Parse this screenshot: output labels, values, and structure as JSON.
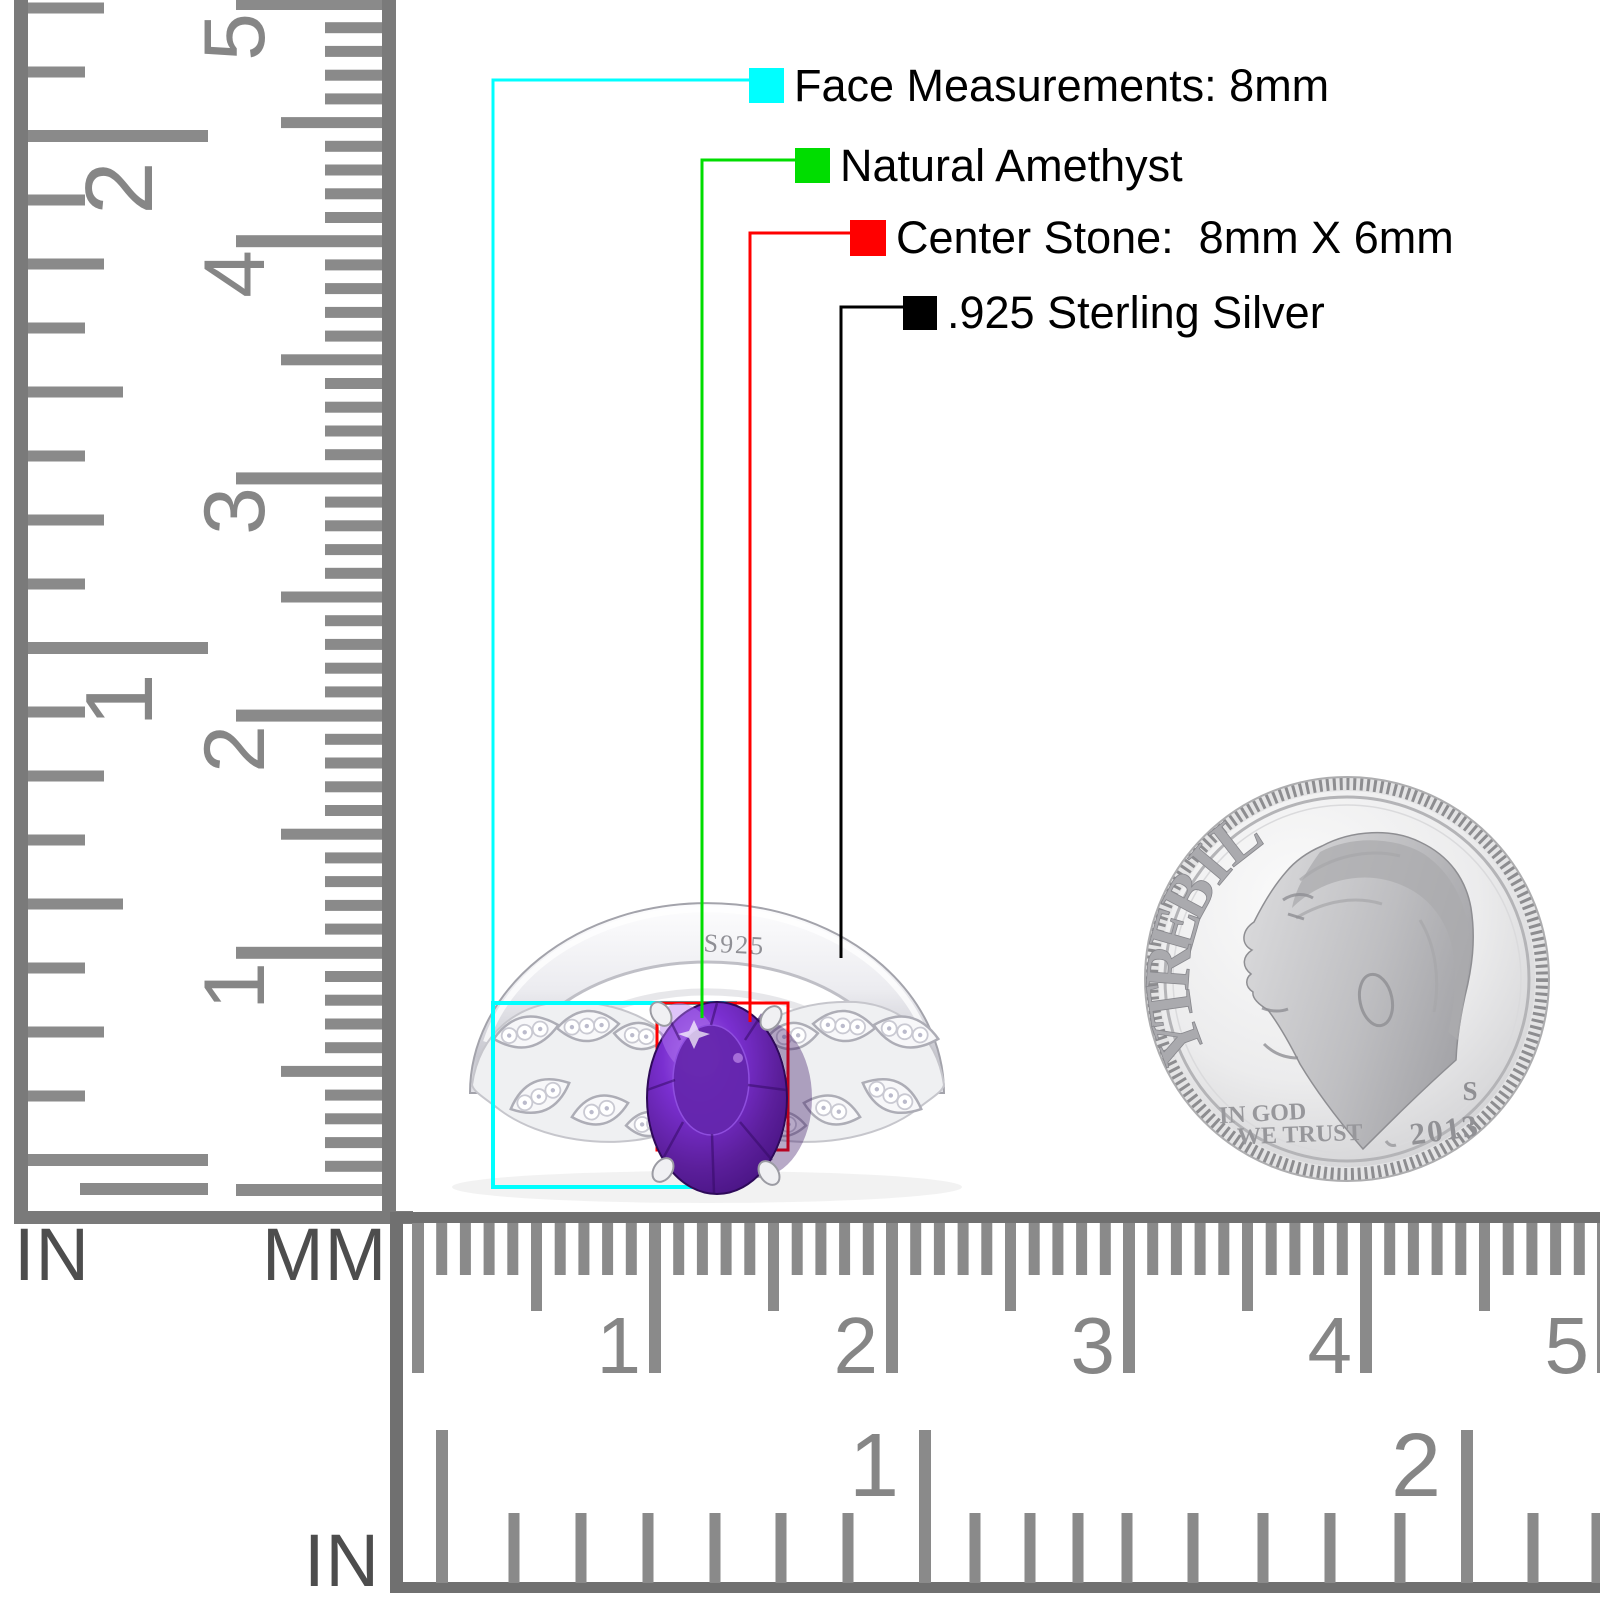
{
  "page": {
    "background": "#ffffff",
    "description": "Sterling silver oval amethyst ring product measurement image with rulers and dime for scale"
  },
  "callouts": [
    {
      "name": "face-measurements",
      "text": "Face Measurements: 8mm",
      "swatch_color": "#00ffff"
    },
    {
      "name": "stone-material",
      "text": "Natural Amethyst",
      "swatch_color": "#00dd00"
    },
    {
      "name": "center-stone-size",
      "text": "Center Stone:  8mm X 6mm",
      "swatch_color": "#ff0000"
    },
    {
      "name": "metal",
      "text": ".925 Sterling Silver",
      "swatch_color": "#000000"
    }
  ],
  "rulers": {
    "left_inch": {
      "unit_label": "IN",
      "numbers": [
        "1",
        "2"
      ]
    },
    "left_mm": {
      "unit_label": "MM",
      "numbers": [
        "1",
        "2",
        "3",
        "4",
        "5"
      ]
    },
    "bottom_mm": {
      "numbers": [
        "1",
        "2",
        "3",
        "4",
        "5"
      ]
    },
    "bottom_inch": {
      "unit_label": "IN",
      "numbers": [
        "1",
        "2"
      ]
    }
  },
  "ring": {
    "stamp": "S925",
    "gem_color": "#5c1f9c",
    "metal_color": "#ececf0"
  },
  "coin": {
    "legend": "LIBERTY",
    "motto_line1": "IN GOD",
    "motto_line2": "WE TRUST",
    "mint_mark": "S",
    "year": "2013"
  }
}
